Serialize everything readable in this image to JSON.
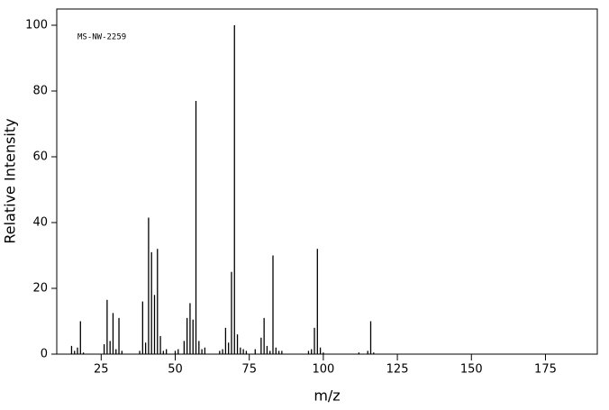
{
  "chart_data": {
    "type": "spectrum",
    "annotation": "MS-NW-2259",
    "x_label": "m/z",
    "y_label": "Relative Intensity",
    "x": [
      15,
      16,
      17,
      18,
      19,
      26,
      27,
      28,
      29,
      30,
      31,
      32,
      38,
      39,
      40,
      41,
      42,
      43,
      44,
      45,
      46,
      47,
      50,
      51,
      53,
      54,
      55,
      56,
      57,
      58,
      59,
      60,
      65,
      66,
      67,
      68,
      69,
      70,
      71,
      72,
      73,
      74,
      77,
      79,
      80,
      81,
      82,
      83,
      84,
      85,
      86,
      95,
      96,
      97,
      98,
      99,
      100,
      112,
      115,
      116,
      117
    ],
    "values": [
      2.5,
      1,
      2,
      10,
      0.5,
      3,
      16.5,
      4,
      12.5,
      1.5,
      11,
      1,
      1,
      16,
      3.5,
      41.5,
      31,
      18,
      32,
      5.5,
      1,
      1.5,
      1,
      1.5,
      4,
      11,
      15.5,
      10.5,
      77,
      4,
      1.5,
      2,
      1,
      1.5,
      8,
      3.5,
      25,
      100,
      6,
      2,
      1.5,
      1,
      1.5,
      5,
      11,
      2.5,
      1,
      30,
      2,
      1,
      1,
      1,
      1.5,
      8,
      32,
      2,
      0.5,
      0.5,
      1,
      10,
      0.5
    ],
    "color": "#000000",
    "xlim": [
      10,
      192.5
    ],
    "xticks": [
      25,
      50,
      75,
      100,
      125,
      150,
      175
    ],
    "ylim": [
      0,
      100
    ],
    "yticks": [
      0,
      20,
      40,
      60,
      80,
      100
    ]
  }
}
